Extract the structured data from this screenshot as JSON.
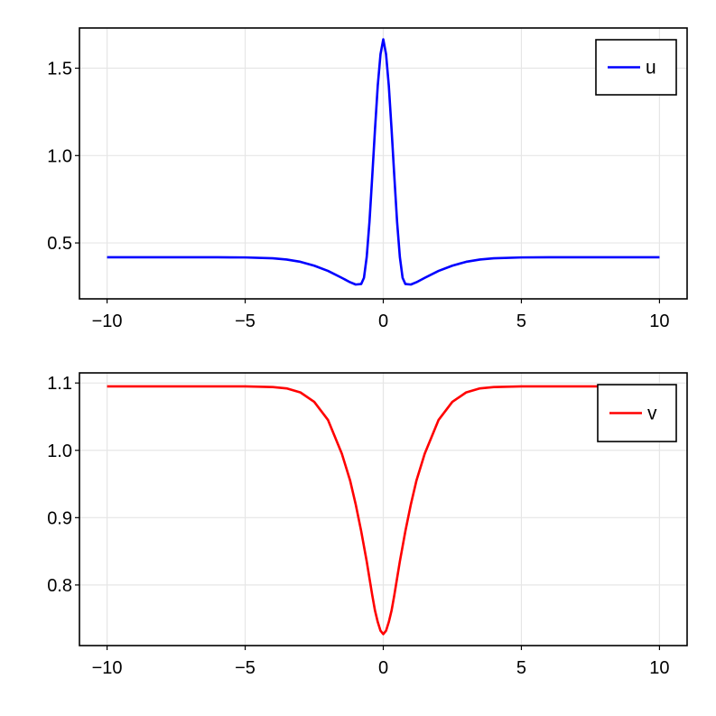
{
  "chart_data": [
    {
      "type": "line",
      "xlim": [
        -11,
        11
      ],
      "ylim": [
        0.18,
        1.73
      ],
      "xticks": [
        -10,
        -5,
        0,
        5,
        10
      ],
      "xtick_labels": [
        "−10",
        "−5",
        "0",
        "5",
        "10"
      ],
      "yticks": [
        0.5,
        1.0,
        1.5
      ],
      "ytick_labels": [
        "0.5",
        "1.0",
        "1.5"
      ],
      "grid": true,
      "legend_position": "top-right",
      "series": [
        {
          "name": "u",
          "color": "#0000ff",
          "x": [
            -10,
            -8,
            -6,
            -5,
            -4,
            -3.5,
            -3,
            -2.5,
            -2,
            -1.5,
            -1.2,
            -1,
            -0.8,
            -0.7,
            -0.6,
            -0.5,
            -0.4,
            -0.3,
            -0.2,
            -0.1,
            0,
            0.1,
            0.2,
            0.3,
            0.4,
            0.5,
            0.6,
            0.7,
            0.8,
            1,
            1.2,
            1.5,
            2,
            2.5,
            3,
            3.5,
            4,
            5,
            6,
            8,
            10
          ],
          "y": [
            0.418,
            0.418,
            0.418,
            0.417,
            0.412,
            0.405,
            0.392,
            0.37,
            0.34,
            0.3,
            0.275,
            0.262,
            0.265,
            0.3,
            0.42,
            0.62,
            0.88,
            1.15,
            1.4,
            1.58,
            1.665,
            1.58,
            1.4,
            1.15,
            0.88,
            0.62,
            0.42,
            0.3,
            0.265,
            0.262,
            0.275,
            0.3,
            0.34,
            0.37,
            0.392,
            0.405,
            0.412,
            0.417,
            0.418,
            0.418,
            0.418
          ]
        }
      ]
    },
    {
      "type": "line",
      "xlim": [
        -11,
        11
      ],
      "ylim": [
        0.71,
        1.115
      ],
      "xticks": [
        -10,
        -5,
        0,
        5,
        10
      ],
      "xtick_labels": [
        "−10",
        "−5",
        "0",
        "5",
        "10"
      ],
      "yticks": [
        0.8,
        0.9,
        1.0,
        1.1
      ],
      "ytick_labels": [
        "0.8",
        "0.9",
        "1.0",
        "1.1"
      ],
      "grid": true,
      "legend_position": "top-right",
      "series": [
        {
          "name": "v",
          "color": "#ff0000",
          "x": [
            -10,
            -8,
            -6,
            -5,
            -4,
            -3.5,
            -3,
            -2.5,
            -2,
            -1.5,
            -1.2,
            -1,
            -0.8,
            -0.6,
            -0.4,
            -0.3,
            -0.2,
            -0.1,
            0,
            0.1,
            0.2,
            0.3,
            0.4,
            0.6,
            0.8,
            1,
            1.2,
            1.5,
            2,
            2.5,
            3,
            3.5,
            4,
            5,
            6,
            8,
            10
          ],
          "y": [
            1.095,
            1.095,
            1.095,
            1.095,
            1.094,
            1.092,
            1.086,
            1.072,
            1.045,
            0.995,
            0.955,
            0.92,
            0.88,
            0.835,
            0.785,
            0.762,
            0.745,
            0.732,
            0.727,
            0.732,
            0.745,
            0.762,
            0.785,
            0.835,
            0.88,
            0.92,
            0.955,
            0.995,
            1.045,
            1.072,
            1.086,
            1.092,
            1.094,
            1.095,
            1.095,
            1.095,
            1.095
          ]
        }
      ]
    }
  ]
}
